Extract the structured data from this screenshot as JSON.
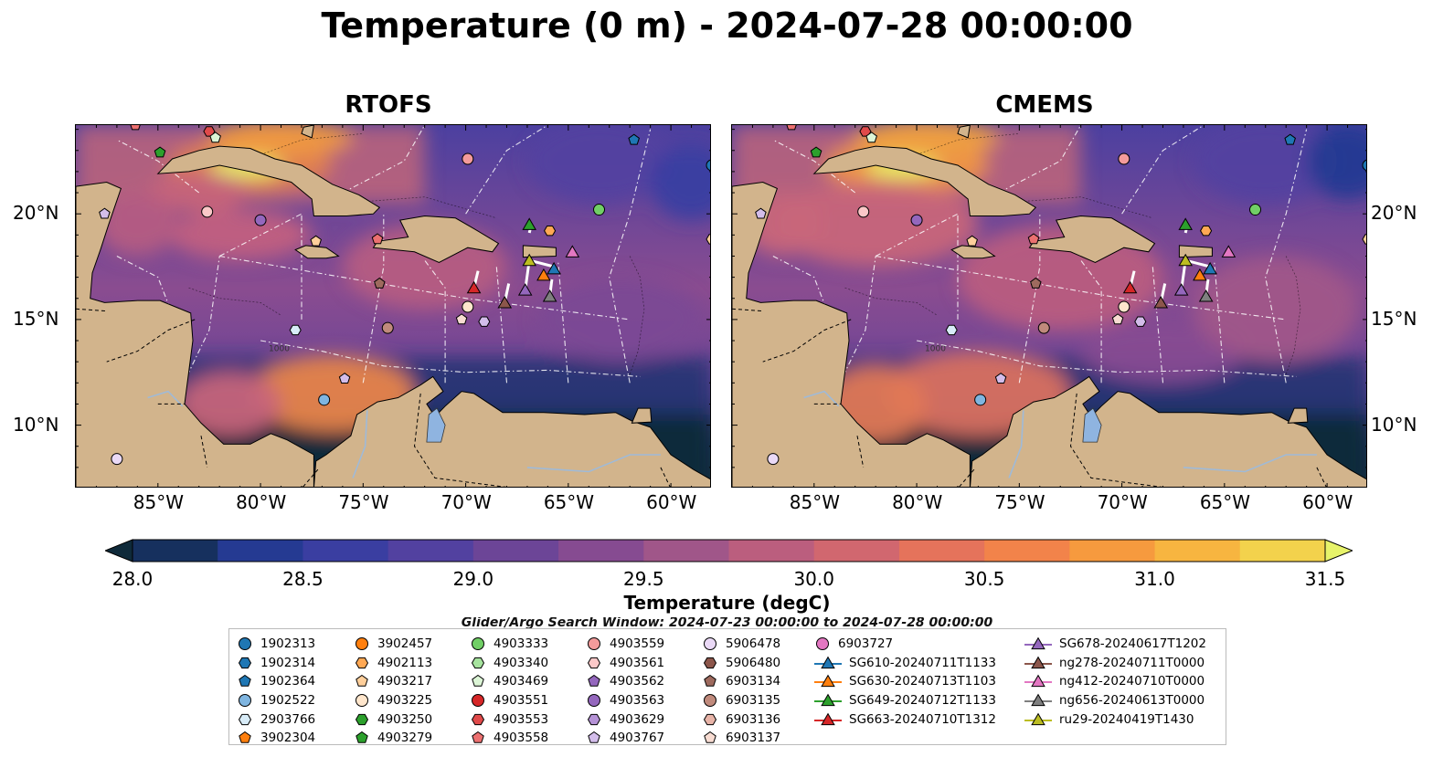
{
  "title": "Temperature (0 m) - 2024-07-28 00:00:00",
  "panels": [
    {
      "title": "RTOFS"
    },
    {
      "title": "CMEMS"
    }
  ],
  "axes": {
    "lon_labels": [
      "85°W",
      "80°W",
      "75°W",
      "70°W",
      "65°W",
      "60°W"
    ],
    "lat_labels": [
      "20°N",
      "15°N",
      "10°N"
    ]
  },
  "colorbar": {
    "label": "Temperature (degC)",
    "ticks": [
      "28.0",
      "28.5",
      "29.0",
      "29.5",
      "30.0",
      "30.5",
      "31.0",
      "31.5"
    ],
    "min": 28.0,
    "max": 31.5,
    "extend": "both",
    "colors": [
      "#0f2a3a",
      "#16305e",
      "#253a92",
      "#3a3ea1",
      "#5241a0",
      "#6c4597",
      "#864b91",
      "#a05689",
      "#bb5e7e",
      "#d1676f",
      "#e5735b",
      "#f2834a",
      "#f69a3e",
      "#f7b540",
      "#f3d24c",
      "#e7f36a"
    ]
  },
  "search_window": "Glider/Argo Search Window: 2024-07-23 00:00:00 to 2024-07-28 00:00:00",
  "contour_label": "1000",
  "legend": {
    "columns": [
      [
        {
          "label": "1902313",
          "marker": "circle",
          "color": "#1f77b4"
        },
        {
          "label": "1902314",
          "marker": "hexagon",
          "color": "#1f77b4"
        },
        {
          "label": "1902364",
          "marker": "pentagon",
          "color": "#1f77b4"
        },
        {
          "label": "1902522",
          "marker": "circle",
          "color": "#7fb5e0"
        },
        {
          "label": "2903766",
          "marker": "hexagon",
          "color": "#d8ecf8"
        },
        {
          "label": "3902304",
          "marker": "pentagon",
          "color": "#ff7f0e"
        }
      ],
      [
        {
          "label": "3902457",
          "marker": "circle",
          "color": "#ff7f0e"
        },
        {
          "label": "4902113",
          "marker": "hexagon",
          "color": "#ffa854"
        },
        {
          "label": "4903217",
          "marker": "pentagon",
          "color": "#ffcf9b"
        },
        {
          "label": "4903225",
          "marker": "circle",
          "color": "#ffe6cc"
        },
        {
          "label": "4903250",
          "marker": "hexagon",
          "color": "#2ca02c"
        },
        {
          "label": "4903279",
          "marker": "pentagon",
          "color": "#2ca02c"
        }
      ],
      [
        {
          "label": "4903333",
          "marker": "circle",
          "color": "#71cf66"
        },
        {
          "label": "4903340",
          "marker": "hexagon",
          "color": "#a6e39e"
        },
        {
          "label": "4903469",
          "marker": "pentagon",
          "color": "#dcf5d6"
        },
        {
          "label": "4903551",
          "marker": "circle",
          "color": "#d62728"
        },
        {
          "label": "4903553",
          "marker": "hexagon",
          "color": "#e04a4a"
        },
        {
          "label": "4903558",
          "marker": "pentagon",
          "color": "#ec7070"
        }
      ],
      [
        {
          "label": "4903559",
          "marker": "circle",
          "color": "#f49b9b"
        },
        {
          "label": "4903561",
          "marker": "hexagon",
          "color": "#fbc8c8"
        },
        {
          "label": "4903562",
          "marker": "pentagon",
          "color": "#9467bd"
        },
        {
          "label": "4903563",
          "marker": "circle",
          "color": "#9467bd"
        },
        {
          "label": "4903629",
          "marker": "hexagon",
          "color": "#b592d6"
        },
        {
          "label": "4903767",
          "marker": "pentagon",
          "color": "#d3bdea"
        }
      ],
      [
        {
          "label": "5906478",
          "marker": "circle",
          "color": "#ead9f6"
        },
        {
          "label": "5906480",
          "marker": "hexagon",
          "color": "#8c564b"
        },
        {
          "label": "6903134",
          "marker": "pentagon",
          "color": "#9e6a5e"
        },
        {
          "label": "6903135",
          "marker": "circle",
          "color": "#c08a7c"
        },
        {
          "label": "6903136",
          "marker": "hexagon",
          "color": "#e8b4a8"
        },
        {
          "label": "6903137",
          "marker": "pentagon",
          "color": "#f8dcd2"
        }
      ],
      [
        {
          "label": "6903727",
          "marker": "circle",
          "color": "#e377c2"
        },
        {
          "label": "SG610-20240711T1133",
          "marker": "triangle",
          "color": "#1f77b4"
        },
        {
          "label": "SG630-20240713T1103",
          "marker": "triangle",
          "color": "#ff7f0e"
        },
        {
          "label": "SG649-20240712T1133",
          "marker": "triangle",
          "color": "#2ca02c"
        },
        {
          "label": "SG663-20240710T1312",
          "marker": "triangle",
          "color": "#d62728"
        }
      ],
      [
        {
          "label": "SG678-20240617T1202",
          "marker": "triangle",
          "color": "#9467bd"
        },
        {
          "label": "ng278-20240711T0000",
          "marker": "triangle",
          "color": "#8c564b"
        },
        {
          "label": "ng412-20240710T0000",
          "marker": "triangle",
          "color": "#e377c2"
        },
        {
          "label": "ng656-20240613T0000",
          "marker": "triangle",
          "color": "#7f7f7f"
        },
        {
          "label": "ru29-20240419T1430",
          "marker": "triangle",
          "color": "#bcbd22"
        }
      ]
    ]
  },
  "map_extent": {
    "lon": [
      -89,
      -58
    ],
    "lat": [
      7,
      24.2
    ]
  },
  "land_color": "#d2b48c",
  "observations": {
    "argo": [
      {
        "lon": -86.1,
        "lat": 24.2,
        "color": "#ec7070",
        "marker": "pentagon"
      },
      {
        "lon": -82.5,
        "lat": 23.9,
        "color": "#e04a4a",
        "marker": "hexagon"
      },
      {
        "lon": -82.2,
        "lat": 23.6,
        "color": "#dcf5d6",
        "marker": "pentagon"
      },
      {
        "lon": -84.9,
        "lat": 22.9,
        "color": "#2ca02c",
        "marker": "pentagon"
      },
      {
        "lon": -61.8,
        "lat": 23.5,
        "color": "#1f77b4",
        "marker": "pentagon"
      },
      {
        "lon": -58.0,
        "lat": 22.3,
        "color": "#1f77b4",
        "marker": "circle"
      },
      {
        "lon": -69.9,
        "lat": 22.6,
        "color": "#f49b9b",
        "marker": "circle"
      },
      {
        "lon": -87.6,
        "lat": 20.0,
        "color": "#d3bdea",
        "marker": "pentagon"
      },
      {
        "lon": -82.6,
        "lat": 20.1,
        "color": "#fbc8c8",
        "marker": "circle"
      },
      {
        "lon": -80.0,
        "lat": 19.7,
        "color": "#9467bd",
        "marker": "circle"
      },
      {
        "lon": -77.3,
        "lat": 18.7,
        "color": "#ffcf9b",
        "marker": "pentagon"
      },
      {
        "lon": -74.3,
        "lat": 18.8,
        "color": "#ec7070",
        "marker": "pentagon"
      },
      {
        "lon": -65.9,
        "lat": 19.2,
        "color": "#ffa854",
        "marker": "hexagon"
      },
      {
        "lon": -63.5,
        "lat": 20.2,
        "color": "#71cf66",
        "marker": "circle"
      },
      {
        "lon": -58.0,
        "lat": 18.8,
        "color": "#ffcf9b",
        "marker": "hexagon"
      },
      {
        "lon": -74.2,
        "lat": 16.7,
        "color": "#9e6a5e",
        "marker": "pentagon"
      },
      {
        "lon": -69.9,
        "lat": 15.6,
        "color": "#ffe6cc",
        "marker": "circle"
      },
      {
        "lon": -70.2,
        "lat": 15.0,
        "color": "#f8dcd2",
        "marker": "pentagon"
      },
      {
        "lon": -69.1,
        "lat": 14.9,
        "color": "#d3bdea",
        "marker": "hexagon"
      },
      {
        "lon": -73.8,
        "lat": 14.6,
        "color": "#c08a7c",
        "marker": "circle"
      },
      {
        "lon": -78.3,
        "lat": 14.5,
        "color": "#d8ecf8",
        "marker": "hexagon"
      },
      {
        "lon": -75.9,
        "lat": 12.2,
        "color": "#d3bdea",
        "marker": "pentagon"
      },
      {
        "lon": -76.9,
        "lat": 11.2,
        "color": "#7fb5e0",
        "marker": "circle"
      },
      {
        "lon": -87.0,
        "lat": 8.4,
        "color": "#ead9f6",
        "marker": "circle"
      }
    ],
    "gliders": [
      {
        "lon": -66.9,
        "lat": 19.5,
        "color": "#2ca02c"
      },
      {
        "lon": -66.9,
        "lat": 17.8,
        "color": "#bcbd22"
      },
      {
        "lon": -64.8,
        "lat": 18.2,
        "color": "#e377c2"
      },
      {
        "lon": -65.7,
        "lat": 17.4,
        "color": "#1f77b4"
      },
      {
        "lon": -66.2,
        "lat": 17.1,
        "color": "#ff7f0e"
      },
      {
        "lon": -69.6,
        "lat": 16.5,
        "color": "#d62728"
      },
      {
        "lon": -67.1,
        "lat": 16.4,
        "color": "#9467bd"
      },
      {
        "lon": -68.1,
        "lat": 15.8,
        "color": "#8c564b"
      },
      {
        "lon": -65.9,
        "lat": 16.1,
        "color": "#7f7f7f"
      }
    ]
  }
}
